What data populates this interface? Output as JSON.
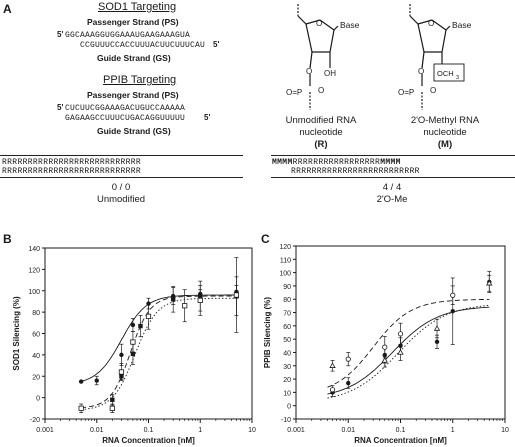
{
  "panel_a": {
    "label": "A",
    "sod1": {
      "title": "SOD1 Targeting",
      "ps_label": "Passenger Strand (PS)",
      "ps_seq": "GGCAAAGGUGGAAAUGAAGAAAGUA",
      "gs_seq": "CCGUUUCCACCUUUACUUCUUUCAU",
      "gs_label": "Guide Strand (GS)",
      "five_prime": "5'"
    },
    "ppib": {
      "title": "PPIB Targeting",
      "ps_label": "Passenger Strand (PS)",
      "ps_seq": "CUCUUCGGAAAGACUGUCCAAAAA",
      "gs_seq": "GAGAAGCCUUUCUGACAGGUUUUU",
      "gs_label": "Guide Strand (GS)",
      "five_prime": "5'"
    },
    "nucleotides": {
      "base": "Base",
      "oh": "OH",
      "och3": "OCH",
      "och3_sub": "3",
      "phosphate_left": "O=P",
      "phosphate_right": "O",
      "unmod_line1": "Unmodified RNA",
      "unmod_line2": "nucleotide",
      "unmod_code": "(R)",
      "omet_line1": "2'O-Methyl RNA",
      "omet_line2": "nucleotide",
      "omet_code": "(M)"
    },
    "unmodified": {
      "row1": "RRRRRRRRRRRRRRRRRRRRRRRRRRR",
      "row2": "RRRRRRRRRRRRRRRRRRRRRRRRRRR",
      "ratio": "0 / 0",
      "name": "Unmodified"
    },
    "omethyl": {
      "row1_mod_left": "MMMM",
      "row1_mid": "RRRRRRRRRRRRRRRRR",
      "row1_mod_right": "MMMM",
      "row2": "RRRRRRRRRRRRRRRRRRRRRRRRR",
      "ratio": "4 / 4",
      "name": "2'O-Me"
    }
  },
  "chart_data": [
    {
      "panel": "B",
      "type": "scatter",
      "xlabel": "RNA Concentration [nM]",
      "ylabel": "SOD1 Silencing (%)",
      "xscale": "log",
      "xlim": [
        0.001,
        10
      ],
      "ylim": [
        -20,
        140
      ],
      "xticks": [
        "0.001",
        "0.01",
        "0.1",
        "1",
        "10"
      ],
      "yticks": [
        "-20",
        "0",
        "20",
        "40",
        "60",
        "80",
        "100",
        "120",
        "140"
      ],
      "series": [
        {
          "marker": "filled-circle",
          "line": "solid",
          "points": [
            [
              0.005,
              15
            ],
            [
              0.01,
              16
            ],
            [
              0.03,
              40
            ],
            [
              0.05,
              68
            ],
            [
              0.1,
              88
            ],
            [
              0.3,
              95
            ],
            [
              1,
              97
            ],
            [
              5,
              99
            ]
          ],
          "errors": [
            0,
            4,
            10,
            6,
            5,
            8,
            4,
            6
          ]
        },
        {
          "marker": "filled-square",
          "line": "dashed",
          "points": [
            [
              0.02,
              -2
            ],
            [
              0.03,
              20
            ],
            [
              0.05,
              41
            ],
            [
              0.07,
              67
            ],
            [
              0.3,
              92
            ],
            [
              1,
              95
            ],
            [
              5,
              95
            ]
          ],
          "errors": [
            5,
            3,
            10,
            10,
            12,
            14,
            18
          ]
        },
        {
          "marker": "open-square",
          "line": "dotted",
          "points": [
            [
              0.005,
              -10
            ],
            [
              0.02,
              -10
            ],
            [
              0.03,
              24
            ],
            [
              0.05,
              52
            ],
            [
              0.1,
              76
            ],
            [
              0.5,
              86
            ],
            [
              1,
              91
            ],
            [
              5,
              96
            ]
          ],
          "errors": [
            4,
            4,
            8,
            10,
            12,
            15,
            14,
            35
          ]
        }
      ]
    },
    {
      "panel": "C",
      "type": "scatter",
      "xlabel": "RNA Concentration [nM]",
      "ylabel": "PPIB Silencing (%)",
      "xscale": "log",
      "xlim": [
        0.001,
        10
      ],
      "ylim": [
        -10,
        120
      ],
      "xticks": [
        "0.001",
        "0.01",
        "0.1",
        "1",
        "10"
      ],
      "yticks": [
        "-10",
        "0",
        "10",
        "20",
        "30",
        "40",
        "50",
        "60",
        "70",
        "80",
        "90",
        "100",
        "110",
        "120"
      ],
      "series": [
        {
          "marker": "filled-circle",
          "line": "solid",
          "points": [
            [
              0.005,
              10
            ],
            [
              0.01,
              17
            ],
            [
              0.05,
              38
            ],
            [
              0.1,
              45
            ],
            [
              0.5,
              48
            ],
            [
              1,
              71
            ],
            [
              5,
              93
            ]
          ],
          "errors": [
            3,
            4,
            6,
            6,
            5,
            25,
            8
          ]
        },
        {
          "marker": "open-circle",
          "line": "dashed",
          "points": [
            [
              0.005,
              12
            ],
            [
              0.01,
              35
            ],
            [
              0.05,
              44
            ],
            [
              0.1,
              54
            ],
            [
              1,
              83
            ]
          ],
          "errors": [
            3,
            5,
            8,
            8,
            7
          ]
        },
        {
          "marker": "open-triangle",
          "line": "dotted",
          "points": [
            [
              0.005,
              30
            ],
            [
              0.05,
              34
            ],
            [
              0.1,
              40
            ],
            [
              0.5,
              58
            ],
            [
              5,
              92
            ]
          ],
          "errors": [
            4,
            5,
            6,
            7,
            6
          ]
        }
      ]
    }
  ],
  "panel_b_label": "B",
  "panel_c_label": "C"
}
